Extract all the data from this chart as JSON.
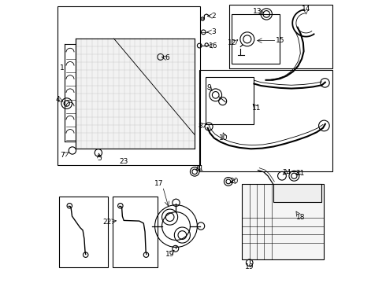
{
  "bg_color": "#ffffff",
  "line_color": "#000000",
  "line_width": 0.8,
  "fig_width": 4.9,
  "fig_height": 3.6,
  "dpi": 100
}
